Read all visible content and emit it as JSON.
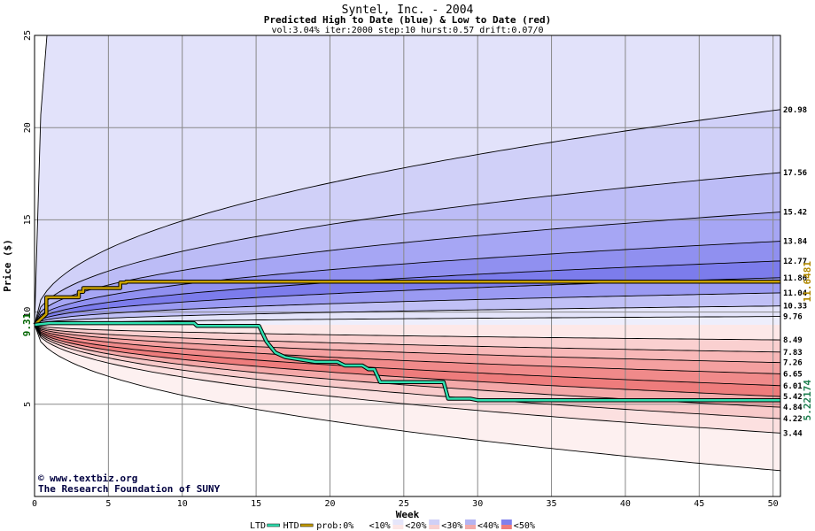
{
  "chart_data": {
    "type": "area",
    "title": "Syntel, Inc. - 2004",
    "subtitle": "Predicted High to Date (blue) &  Low to Date (red)",
    "params": "vol:3.04% iter:2000 step:10 hurst:0.57 drift:0.07/0",
    "xlabel": "Week",
    "ylabel": "Price ($)",
    "xlim": [
      0,
      50.5
    ],
    "ylim": [
      0,
      25
    ],
    "x_ticks": [
      0,
      5,
      10,
      15,
      20,
      25,
      30,
      35,
      40,
      45,
      50
    ],
    "y_ticks": [
      5,
      10,
      15,
      20,
      25
    ],
    "grid": true,
    "start_price": 9.31,
    "start_label": "9.31",
    "colors": {
      "htd_line": "#c8a000",
      "ltd_line": "#30e0b0",
      "htd_value": "#b08800",
      "ltd_value": "#208050"
    },
    "high_bands": [
      {
        "end": 25.0,
        "fill": "#eeeefc",
        "k": 1.12,
        "shape": "sqrt",
        "label": ""
      },
      {
        "end": 20.98,
        "fill": "#e2e2fa",
        "label": "20.98"
      },
      {
        "end": 17.56,
        "fill": "#d0d0f8",
        "label": "17.56"
      },
      {
        "end": 15.42,
        "fill": "#bcbcf6",
        "label": "15.42"
      },
      {
        "end": 13.84,
        "fill": "#a6a6f4",
        "label": "13.84"
      },
      {
        "end": 12.77,
        "fill": "#9090f0",
        "label": "12.77"
      },
      {
        "end": 11.86,
        "fill": "#7c7cec",
        "label": "11.86"
      },
      {
        "end": 11.04,
        "fill": "#9a9af2",
        "label": "11.04"
      },
      {
        "end": 10.33,
        "fill": "#c0c0f6",
        "label": "10.33"
      },
      {
        "end": 9.76,
        "fill": "#e4e4fa",
        "label": "9.76"
      }
    ],
    "low_bands": [
      {
        "end": 8.49,
        "fill": "#fde8e8",
        "label": "8.49"
      },
      {
        "end": 7.83,
        "fill": "#fad0d0",
        "label": "7.83"
      },
      {
        "end": 7.26,
        "fill": "#f8b8b8",
        "label": "7.26"
      },
      {
        "end": 6.65,
        "fill": "#f4a0a0",
        "label": "6.65"
      },
      {
        "end": 6.01,
        "fill": "#f08a8a",
        "label": "6.01"
      },
      {
        "end": 5.42,
        "fill": "#ee7c7c",
        "label": "5.42"
      },
      {
        "end": 4.84,
        "fill": "#f4a8a8",
        "label": "4.84"
      },
      {
        "end": 4.22,
        "fill": "#f8caca",
        "label": "4.22"
      },
      {
        "end": 3.44,
        "fill": "#fce0e0",
        "label": "3.44"
      },
      {
        "end": 1.4,
        "fill": "#fdf0f0",
        "label": ""
      }
    ],
    "htd_series": {
      "name": "HTD",
      "x": [
        0,
        0.8,
        0.8,
        3,
        3,
        3.3,
        3.3,
        5.8,
        5.8,
        6.2,
        6.2,
        50.5
      ],
      "y": [
        9.31,
        9.9,
        10.8,
        10.8,
        11.1,
        11.1,
        11.3,
        11.3,
        11.6,
        11.6,
        11.65,
        11.65
      ]
    },
    "ltd_series": {
      "name": "LTD",
      "x": [
        0,
        1,
        10.8,
        11,
        15.2,
        15.7,
        16.3,
        17,
        19,
        20.5,
        21,
        22.2,
        22.6,
        23,
        23.4,
        27.7,
        28,
        29.5,
        30,
        50.5
      ],
      "y": [
        9.31,
        9.4,
        9.4,
        9.25,
        9.25,
        8.4,
        7.8,
        7.55,
        7.3,
        7.3,
        7.1,
        7.1,
        6.9,
        6.9,
        6.2,
        6.2,
        5.3,
        5.3,
        5.22,
        5.22
      ]
    },
    "htd_value": "11.6481",
    "ltd_value": "5.22174",
    "legend": [
      {
        "type": "line",
        "label": "LTD",
        "color": "#30e0b0"
      },
      {
        "type": "line",
        "label": "HTD",
        "color": "#c8a000"
      },
      {
        "type": "text",
        "label": "prob:0%"
      },
      {
        "type": "swatch",
        "label": "<10%",
        "top": "#ffffff",
        "bottom": "#ffffff"
      },
      {
        "type": "swatch",
        "label": "<20%",
        "top": "#e6e6fa",
        "bottom": "#fce6e6"
      },
      {
        "type": "swatch",
        "label": "<30%",
        "top": "#d0d0f6",
        "bottom": "#f8d0d0"
      },
      {
        "type": "swatch",
        "label": "<40%",
        "top": "#b4b4f2",
        "bottom": "#f2aaaa"
      },
      {
        "type": "swatch",
        "label": "<50%",
        "top": "#8080ec",
        "bottom": "#ee7c7c"
      }
    ]
  },
  "credit": {
    "site": "www.textbiz.org",
    "org": "The Research Foundation of SUNY",
    "copyright_symbol": "©"
  }
}
